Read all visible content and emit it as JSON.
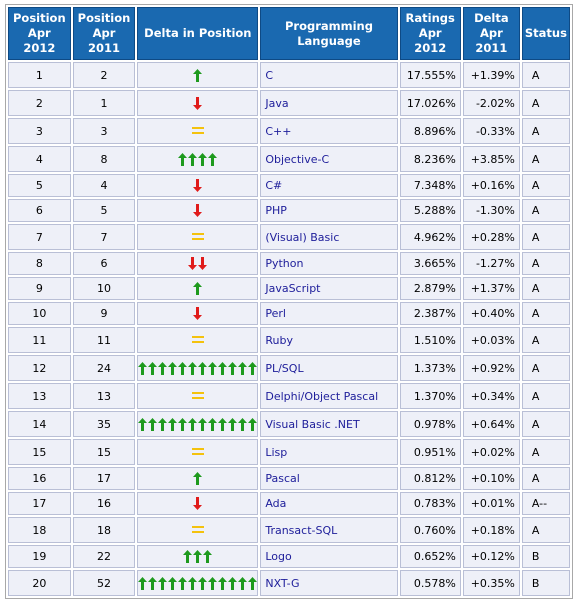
{
  "headers": {
    "pos2012": [
      "Position",
      "Apr 2012"
    ],
    "pos2011": [
      "Position",
      "Apr 2011"
    ],
    "delta_pos": "Delta in Position",
    "language": "Programming Language",
    "ratings": [
      "Ratings",
      "Apr 2012"
    ],
    "delta": [
      "Delta",
      "Apr 2011"
    ],
    "status": "Status"
  },
  "colors": {
    "up": "#1e9a1e",
    "down": "#e01b1b",
    "same": "#f4c20d",
    "header_bg": "#1a69b0",
    "cell_bg": "#eef0f8"
  },
  "icons": {
    "up": "green-up-arrow-icon",
    "down": "red-down-arrow-icon",
    "same": "yellow-equals-icon"
  },
  "rows": [
    {
      "pos2012": "1",
      "pos2011": "2",
      "change": "up",
      "count": 1,
      "language": "C",
      "ratings": "17.555%",
      "delta": "+1.39%",
      "status": "A"
    },
    {
      "pos2012": "2",
      "pos2011": "1",
      "change": "down",
      "count": 1,
      "language": "Java",
      "ratings": "17.026%",
      "delta": "-2.02%",
      "status": "A"
    },
    {
      "pos2012": "3",
      "pos2011": "3",
      "change": "same",
      "count": 1,
      "language": "C++",
      "ratings": "8.896%",
      "delta": "-0.33%",
      "status": "A"
    },
    {
      "pos2012": "4",
      "pos2011": "8",
      "change": "up",
      "count": 4,
      "language": "Objective-C",
      "ratings": "8.236%",
      "delta": "+3.85%",
      "status": "A"
    },
    {
      "pos2012": "5",
      "pos2011": "4",
      "change": "down",
      "count": 1,
      "language": "C#",
      "ratings": "7.348%",
      "delta": "+0.16%",
      "status": "A"
    },
    {
      "pos2012": "6",
      "pos2011": "5",
      "change": "down",
      "count": 1,
      "language": "PHP",
      "ratings": "5.288%",
      "delta": "-1.30%",
      "status": "A"
    },
    {
      "pos2012": "7",
      "pos2011": "7",
      "change": "same",
      "count": 1,
      "language": "(Visual) Basic",
      "ratings": "4.962%",
      "delta": "+0.28%",
      "status": "A"
    },
    {
      "pos2012": "8",
      "pos2011": "6",
      "change": "down",
      "count": 2,
      "language": "Python",
      "ratings": "3.665%",
      "delta": "-1.27%",
      "status": "A"
    },
    {
      "pos2012": "9",
      "pos2011": "10",
      "change": "up",
      "count": 1,
      "language": "JavaScript",
      "ratings": "2.879%",
      "delta": "+1.37%",
      "status": "A"
    },
    {
      "pos2012": "10",
      "pos2011": "9",
      "change": "down",
      "count": 1,
      "language": "Perl",
      "ratings": "2.387%",
      "delta": "+0.40%",
      "status": "A"
    },
    {
      "pos2012": "11",
      "pos2011": "11",
      "change": "same",
      "count": 1,
      "language": "Ruby",
      "ratings": "1.510%",
      "delta": "+0.03%",
      "status": "A"
    },
    {
      "pos2012": "12",
      "pos2011": "24",
      "change": "up",
      "count": 12,
      "language": "PL/SQL",
      "ratings": "1.373%",
      "delta": "+0.92%",
      "status": "A"
    },
    {
      "pos2012": "13",
      "pos2011": "13",
      "change": "same",
      "count": 1,
      "language": "Delphi/Object Pascal",
      "ratings": "1.370%",
      "delta": "+0.34%",
      "status": "A"
    },
    {
      "pos2012": "14",
      "pos2011": "35",
      "change": "up",
      "count": 12,
      "language": "Visual Basic .NET",
      "ratings": "0.978%",
      "delta": "+0.64%",
      "status": "A"
    },
    {
      "pos2012": "15",
      "pos2011": "15",
      "change": "same",
      "count": 1,
      "language": "Lisp",
      "ratings": "0.951%",
      "delta": "+0.02%",
      "status": "A"
    },
    {
      "pos2012": "16",
      "pos2011": "17",
      "change": "up",
      "count": 1,
      "language": "Pascal",
      "ratings": "0.812%",
      "delta": "+0.10%",
      "status": "A"
    },
    {
      "pos2012": "17",
      "pos2011": "16",
      "change": "down",
      "count": 1,
      "language": "Ada",
      "ratings": "0.783%",
      "delta": "+0.01%",
      "status": "A--"
    },
    {
      "pos2012": "18",
      "pos2011": "18",
      "change": "same",
      "count": 1,
      "language": "Transact-SQL",
      "ratings": "0.760%",
      "delta": "+0.18%",
      "status": "A"
    },
    {
      "pos2012": "19",
      "pos2011": "22",
      "change": "up",
      "count": 3,
      "language": "Logo",
      "ratings": "0.652%",
      "delta": "+0.12%",
      "status": "B"
    },
    {
      "pos2012": "20",
      "pos2011": "52",
      "change": "up",
      "count": 12,
      "language": "NXT-G",
      "ratings": "0.578%",
      "delta": "+0.35%",
      "status": "B"
    }
  ]
}
